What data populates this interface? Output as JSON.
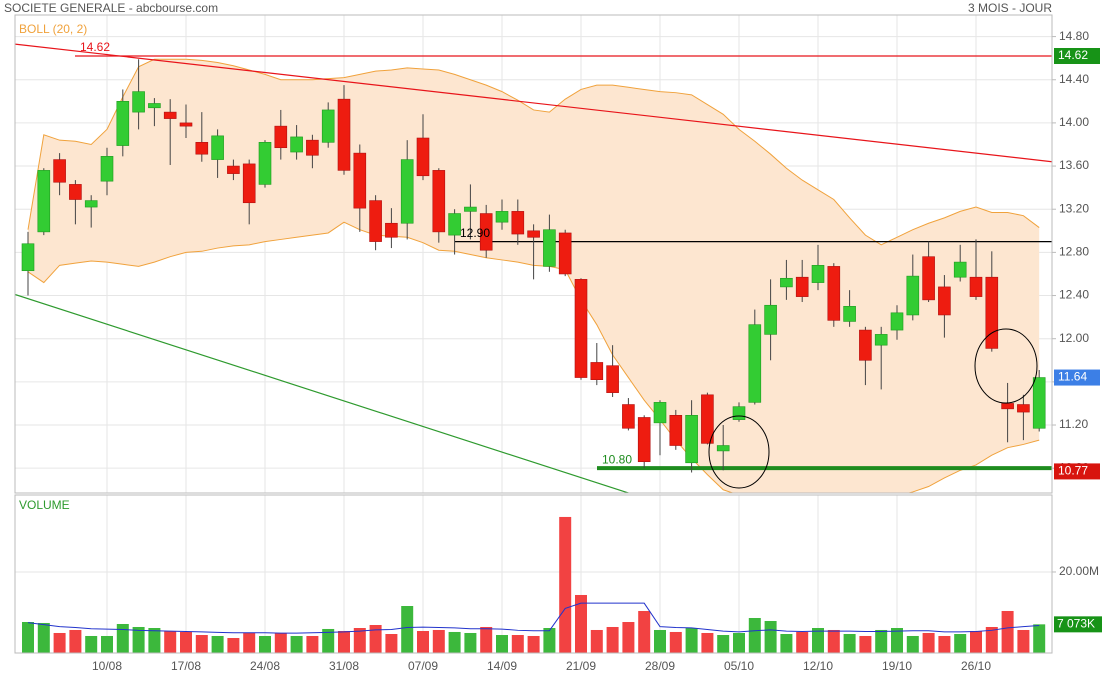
{
  "chart_data": [
    {
      "type": "candlestick",
      "title": "SOCIETE GENERALE - abcbourse.com",
      "subtitle": "3 MOIS - JOUR",
      "indicator": "BOLL (20, 2)",
      "open": [
        12.63,
        12.99,
        13.66,
        13.43,
        13.22,
        13.46,
        13.79,
        14.1,
        14.14,
        14.1,
        14.0,
        13.82,
        13.66,
        13.6,
        13.62,
        13.43,
        13.97,
        13.73,
        13.84,
        13.82,
        14.22,
        13.72,
        13.28,
        13.07,
        13.07,
        13.86,
        13.56,
        12.96,
        13.18,
        13.16,
        13.08,
        13.18,
        13.0,
        12.67,
        12.98,
        12.55,
        11.78,
        11.75,
        11.39,
        11.27,
        11.22,
        11.29,
        10.85,
        11.48,
        10.96,
        11.25,
        11.41,
        12.04,
        12.48,
        12.57,
        12.52,
        12.67,
        12.16,
        12.08,
        11.94,
        12.08,
        12.22,
        12.76,
        12.48,
        12.57,
        12.57,
        12.57,
        11.4,
        11.39,
        11.17
      ],
      "high": [
        12.99,
        13.58,
        13.72,
        13.47,
        13.33,
        13.77,
        14.31,
        14.59,
        14.23,
        14.22,
        14.17,
        14.1,
        13.94,
        13.66,
        13.66,
        13.84,
        14.12,
        13.98,
        13.89,
        14.19,
        14.35,
        13.8,
        13.33,
        13.21,
        13.84,
        14.08,
        13.58,
        13.2,
        13.43,
        13.24,
        13.29,
        13.29,
        13.06,
        13.15,
        13.01,
        12.56,
        11.96,
        11.94,
        11.45,
        11.29,
        11.43,
        11.34,
        11.43,
        11.5,
        11.2,
        11.41,
        12.27,
        12.55,
        12.73,
        12.73,
        12.87,
        12.7,
        12.45,
        12.11,
        12.11,
        12.31,
        12.78,
        12.9,
        12.59,
        12.87,
        12.92,
        12.81,
        11.59,
        11.48,
        11.71
      ],
      "low": [
        12.4,
        12.96,
        13.33,
        13.06,
        13.03,
        13.33,
        13.69,
        13.94,
        13.97,
        13.61,
        13.86,
        13.64,
        13.49,
        13.47,
        13.06,
        13.4,
        13.66,
        13.66,
        13.58,
        13.77,
        13.52,
        12.99,
        12.82,
        12.84,
        12.92,
        13.47,
        12.89,
        12.78,
        12.92,
        12.75,
        13.01,
        12.87,
        12.55,
        12.62,
        12.58,
        11.62,
        11.57,
        11.46,
        11.15,
        10.8,
        10.92,
        10.97,
        10.76,
        11.02,
        10.78,
        11.23,
        11.39,
        11.8,
        12.36,
        12.34,
        12.45,
        12.11,
        12.11,
        11.57,
        11.53,
        11.99,
        12.17,
        12.34,
        12.01,
        12.53,
        12.36,
        11.88,
        11.04,
        11.06,
        11.14
      ],
      "close": [
        12.88,
        13.56,
        13.45,
        13.29,
        13.28,
        13.69,
        14.2,
        14.29,
        14.18,
        14.04,
        13.97,
        13.71,
        13.88,
        13.53,
        13.26,
        13.82,
        13.77,
        13.87,
        13.7,
        14.12,
        13.56,
        13.21,
        12.9,
        12.94,
        13.66,
        13.51,
        12.99,
        13.16,
        13.22,
        12.82,
        13.18,
        12.97,
        12.94,
        13.01,
        12.6,
        11.64,
        11.62,
        11.5,
        11.17,
        10.86,
        11.41,
        11.01,
        11.29,
        11.03,
        11.01,
        11.37,
        12.13,
        12.31,
        12.56,
        12.39,
        12.68,
        12.17,
        12.3,
        11.8,
        12.04,
        12.24,
        12.58,
        12.36,
        12.22,
        12.71,
        12.39,
        11.91,
        11.35,
        11.32,
        11.64
      ],
      "up_color": "#33cc33",
      "down_color": "#ee1c10",
      "bollinger": {
        "upper": [
          13.01,
          13.89,
          13.84,
          13.83,
          13.8,
          13.94,
          14.24,
          14.52,
          14.59,
          14.59,
          14.59,
          14.58,
          14.56,
          14.53,
          14.49,
          14.45,
          14.4,
          14.4,
          14.4,
          14.41,
          14.42,
          14.45,
          14.48,
          14.49,
          14.51,
          14.5,
          14.49,
          14.45,
          14.4,
          14.35,
          14.29,
          14.21,
          14.12,
          14.1,
          14.22,
          14.31,
          14.35,
          14.35,
          14.33,
          14.31,
          14.29,
          14.28,
          14.26,
          14.17,
          14.08,
          13.94,
          13.83,
          13.71,
          13.58,
          13.47,
          13.38,
          13.29,
          13.12,
          12.96,
          12.87,
          12.94,
          13.01,
          13.07,
          13.12,
          13.18,
          13.22,
          13.17,
          13.17,
          13.14,
          13.03
        ],
        "lower": [
          12.62,
          12.52,
          12.68,
          12.7,
          12.72,
          12.71,
          12.69,
          12.67,
          12.71,
          12.76,
          12.8,
          12.81,
          12.84,
          12.86,
          12.87,
          12.9,
          12.92,
          12.94,
          12.96,
          12.98,
          13.08,
          13.01,
          12.96,
          12.95,
          12.94,
          12.89,
          12.82,
          12.81,
          12.78,
          12.75,
          12.73,
          12.71,
          12.68,
          12.67,
          12.64,
          12.36,
          12.13,
          11.85,
          11.64,
          11.43,
          11.25,
          11.06,
          10.89,
          10.74,
          10.6,
          10.55,
          10.52,
          10.5,
          10.5,
          10.5,
          10.5,
          10.5,
          10.5,
          10.5,
          10.52,
          10.54,
          10.58,
          10.63,
          10.71,
          10.78,
          10.83,
          10.92,
          10.99,
          11.02,
          11.06
        ],
        "color": "#f0a23c",
        "fill": "#fde6d0"
      },
      "trendlines": [
        {
          "start": 14.73,
          "end": 13.64,
          "color": "#e8141a"
        },
        {
          "start": 12.41,
          "end": 9.3,
          "color": "#2e9a2e"
        }
      ],
      "levels": [
        {
          "value": 14.62,
          "label": "14.62",
          "color": "#e8141a"
        },
        {
          "value": 12.9,
          "label": "12.90",
          "color": "#000000"
        },
        {
          "value": 10.8,
          "label": "10.80",
          "color": "#1e8c1e"
        }
      ],
      "markers": [
        {
          "value": 14.62,
          "label": "14.62",
          "color": "#179317"
        },
        {
          "value": 11.64,
          "label": "11.64",
          "color": "#3c7fe6"
        },
        {
          "value": 10.77,
          "label": "10.77",
          "color": "#d8140e"
        }
      ],
      "ylim": [
        10.57,
        15.0
      ],
      "yticks": [
        {
          "value": 10.8,
          "label": "10.80"
        },
        {
          "value": 11.2,
          "label": "11.20"
        },
        {
          "value": 11.6,
          "label": "11.60"
        },
        {
          "value": 12.0,
          "label": "12.00"
        },
        {
          "value": 12.4,
          "label": "12.40"
        },
        {
          "value": 12.8,
          "label": "12.80"
        },
        {
          "value": 13.2,
          "label": "13.20"
        },
        {
          "value": 13.6,
          "label": "13.60"
        },
        {
          "value": 14.0,
          "label": "14.00"
        },
        {
          "value": 14.4,
          "label": "14.40"
        },
        {
          "value": 14.8,
          "label": "14.80"
        }
      ],
      "grid": true
    },
    {
      "type": "bar",
      "title": "VOLUME",
      "categories": [
        null,
        null,
        null,
        null,
        null,
        "10/08",
        null,
        null,
        null,
        null,
        "17/08",
        null,
        null,
        null,
        null,
        "24/08",
        null,
        null,
        null,
        null,
        "31/08",
        null,
        null,
        null,
        null,
        "07/09",
        null,
        null,
        null,
        null,
        "14/09",
        null,
        null,
        null,
        null,
        "21/09",
        null,
        null,
        null,
        null,
        "28/09",
        null,
        null,
        null,
        null,
        "05/10",
        null,
        null,
        null,
        null,
        "12/10",
        null,
        null,
        null,
        null,
        "19/10",
        null,
        null,
        null,
        null,
        "26/10",
        null,
        null,
        null,
        null
      ],
      "values": [
        7.65,
        7.41,
        4.94,
        5.68,
        4.2,
        4.2,
        7.16,
        6.42,
        6.17,
        5.43,
        5.19,
        4.44,
        4.2,
        3.7,
        4.94,
        4.2,
        4.94,
        4.2,
        4.2,
        5.93,
        5.43,
        6.17,
        6.91,
        4.69,
        11.6,
        5.43,
        5.68,
        5.19,
        4.94,
        6.42,
        4.44,
        4.44,
        4.2,
        6.17,
        33.58,
        14.32,
        5.68,
        6.42,
        7.65,
        10.37,
        5.68,
        5.19,
        6.17,
        4.94,
        4.44,
        4.94,
        8.64,
        7.9,
        4.69,
        5.19,
        6.17,
        5.68,
        4.69,
        4.2,
        5.68,
        6.17,
        4.2,
        4.94,
        4.2,
        4.69,
        5.43,
        6.42,
        10.37,
        5.68,
        7.073
      ],
      "average": [
        7.5,
        7.0,
        6.5,
        6.3,
        6.0,
        5.9,
        5.8,
        5.6,
        5.5,
        5.4,
        5.3,
        5.2,
        5.1,
        5.0,
        5.0,
        5.0,
        4.9,
        4.9,
        5.0,
        5.1,
        5.2,
        5.4,
        5.7,
        5.8,
        6.3,
        6.4,
        6.3,
        6.2,
        6.0,
        6.0,
        5.9,
        5.6,
        5.5,
        5.5,
        11.0,
        12.3,
        12.3,
        12.3,
        12.3,
        12.3,
        6.5,
        6.3,
        6.2,
        5.8,
        5.4,
        5.2,
        5.5,
        5.7,
        5.4,
        5.3,
        5.4,
        5.4,
        5.4,
        5.3,
        5.3,
        5.4,
        5.5,
        5.5,
        5.2,
        5.2,
        5.3,
        5.6,
        6.2,
        6.5,
        6.8
      ],
      "average_color": "#2233cc",
      "up_color": "#3cb83c",
      "down_color": "#f24242",
      "marker": {
        "value": 7.073,
        "label": "7 073K",
        "color": "#179317"
      },
      "ylim": [
        0,
        39
      ],
      "yticks": [
        {
          "value": 20,
          "label": "20.00M"
        }
      ],
      "grid": true
    }
  ]
}
